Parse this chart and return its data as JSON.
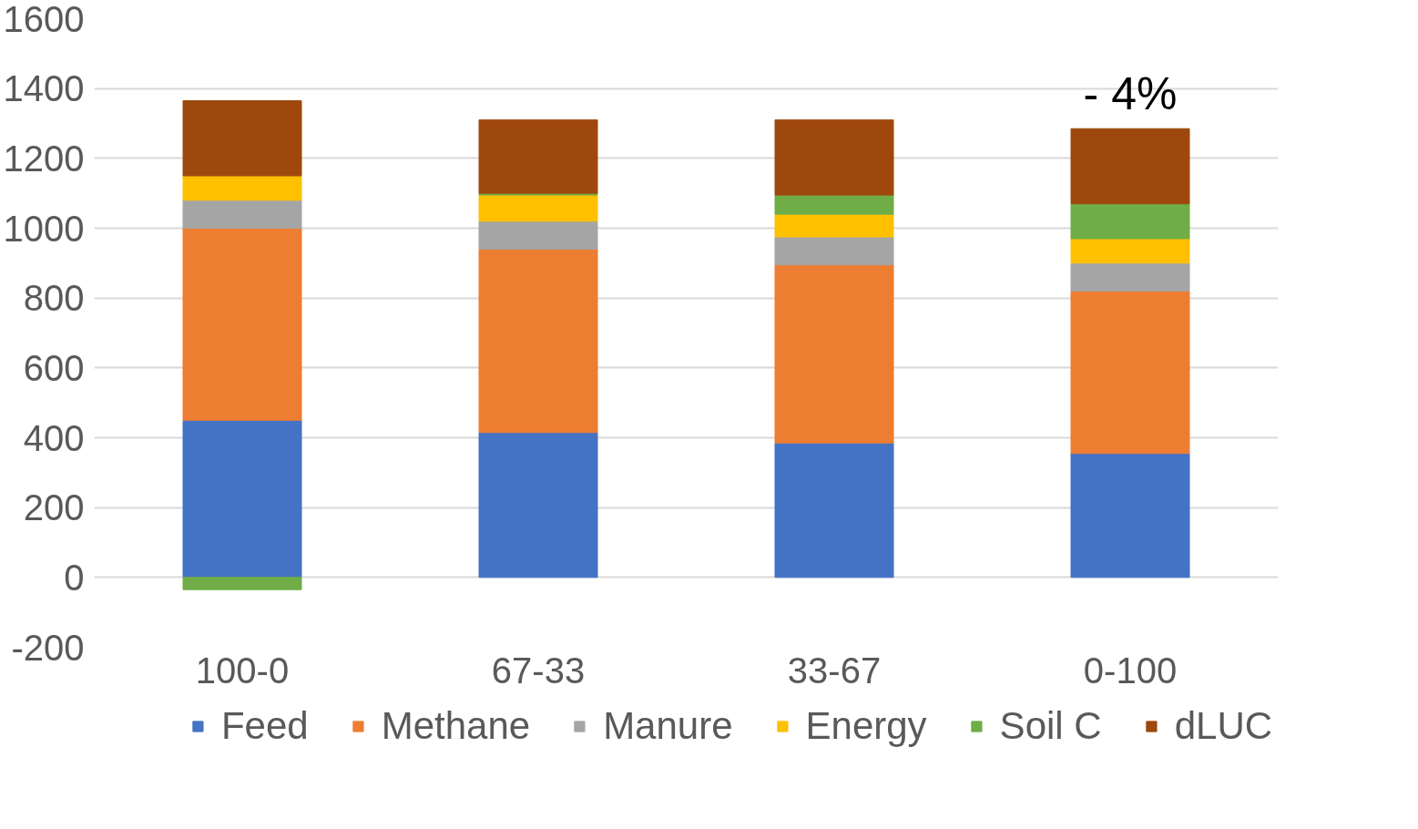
{
  "chart_data": {
    "type": "bar",
    "stacked": true,
    "categories": [
      "100-0",
      "67-33",
      "33-67",
      "0-100"
    ],
    "series": [
      {
        "name": "Feed",
        "color": "#4472c4",
        "values": [
          450,
          415,
          385,
          355
        ]
      },
      {
        "name": "Methane",
        "color": "#ed7d31",
        "values": [
          550,
          525,
          510,
          465
        ]
      },
      {
        "name": "Manure",
        "color": "#a5a5a5",
        "values": [
          80,
          80,
          80,
          80
        ]
      },
      {
        "name": "Energy",
        "color": "#ffc000",
        "values": [
          70,
          75,
          65,
          70
        ]
      },
      {
        "name": "Soil C",
        "color": "#70ad47",
        "values": [
          -35,
          5,
          55,
          100
        ]
      },
      {
        "name": "dLUC",
        "color": "#9e480e",
        "values": [
          215,
          210,
          215,
          215
        ]
      }
    ],
    "ylim": [
      -200,
      1600
    ],
    "yticks": [
      -200,
      0,
      200,
      400,
      600,
      800,
      1000,
      1200,
      1400,
      1600
    ],
    "grid": "y",
    "legend": "bottom",
    "annotations": [
      "- 4%"
    ]
  }
}
